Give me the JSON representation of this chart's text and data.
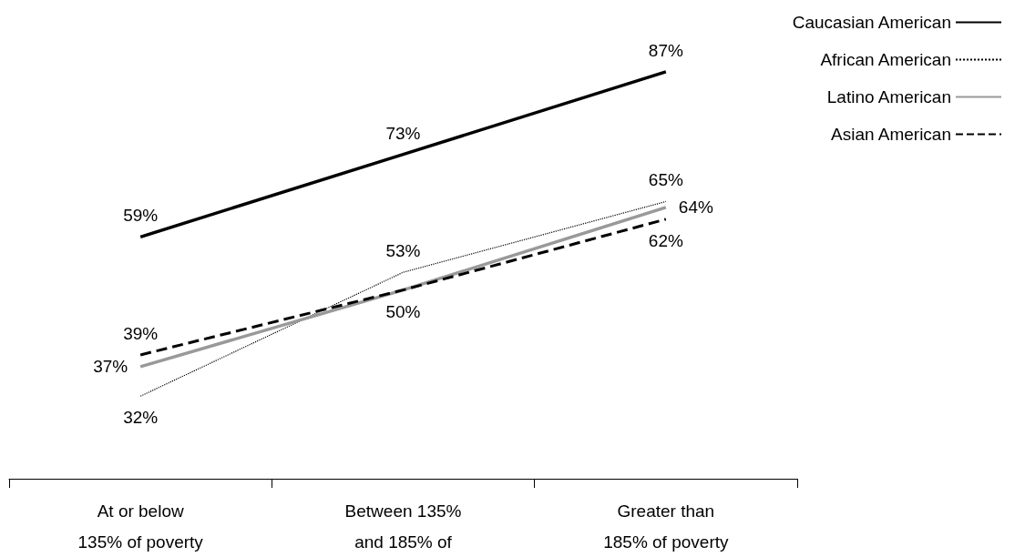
{
  "chart_data": {
    "type": "line",
    "categories": [
      "At or below\n135% of poverty",
      "Between 135%\nand 185% of",
      "Greater than\n185% of poverty"
    ],
    "series": [
      {
        "name": "Caucasian American",
        "color": "#000000",
        "line_style": "solid",
        "values": [
          59,
          73,
          87
        ],
        "value_labels": [
          "59%",
          "73%",
          "87%"
        ]
      },
      {
        "name": "African American",
        "color": "#000000",
        "line_style": "dotted",
        "values": [
          32,
          53,
          65
        ],
        "value_labels": [
          "32%",
          "53%",
          "65%"
        ]
      },
      {
        "name": "Latino American",
        "color": "#999999",
        "line_style": "solid",
        "values": [
          37,
          50,
          64
        ],
        "value_labels": [
          "37%",
          "50%",
          "64%"
        ]
      },
      {
        "name": "Asian American",
        "color": "#000000",
        "line_style": "dashed",
        "values": [
          39,
          50,
          62
        ],
        "value_labels": [
          "39%",
          null,
          "62%"
        ]
      }
    ],
    "legend": "top right",
    "marker": "none",
    "grid": false
  }
}
